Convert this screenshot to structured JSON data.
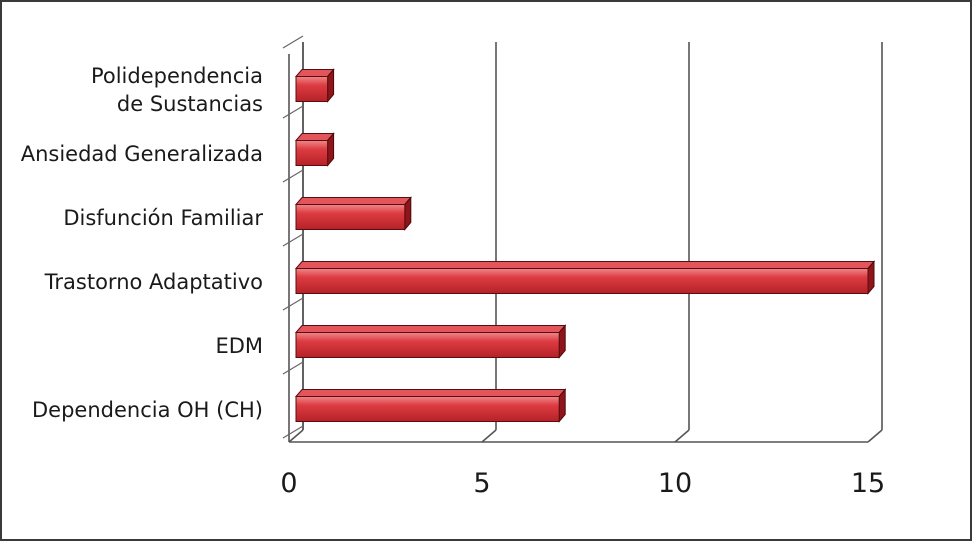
{
  "chart_data": {
    "type": "bar",
    "orientation": "horizontal",
    "style": "3d",
    "title": "",
    "xlabel": "",
    "ylabel": "",
    "xlim": [
      0,
      15
    ],
    "xticks": [
      "0",
      "5",
      "10",
      "15"
    ],
    "grid": true,
    "bar_color": "#d9353b",
    "categories": [
      [
        "Polidependencia",
        "de Sustancias"
      ],
      [
        "Ansiedad Generalizada"
      ],
      [
        "Disfunción Familiar"
      ],
      [
        "Trastorno Adaptativo"
      ],
      [
        "EDM"
      ],
      [
        "Dependencia OH (CH)"
      ]
    ],
    "values": [
      1,
      1,
      3,
      15,
      7,
      7
    ]
  }
}
